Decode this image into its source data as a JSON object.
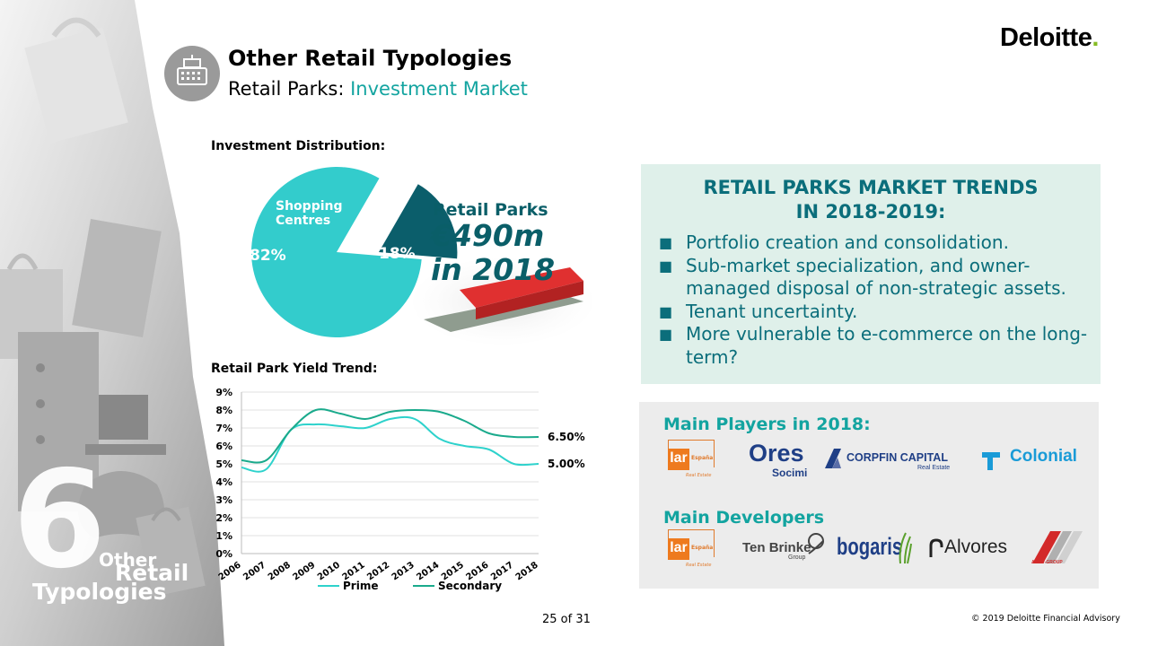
{
  "brand": {
    "logo": "Deloitte",
    "logo_dot": "."
  },
  "sidebar": {
    "number": "6",
    "line1": "Other",
    "line2": "Retail",
    "line3": "Typologies"
  },
  "header": {
    "title": "Other Retail Typologies",
    "subtitle_prefix": "Retail Parks: ",
    "subtitle_accent": "Investment Market"
  },
  "distribution": {
    "label": "Investment Distribution:",
    "slices": [
      {
        "name": "Shopping Centres",
        "percent_label": "82%",
        "value": 82
      },
      {
        "name": "Retail Parks",
        "percent_label": "18%",
        "value": 18
      }
    ],
    "shopping_line1": "Shopping",
    "shopping_line2": "Centres",
    "retail_parks_label": "Retail Parks",
    "amount_line1": "€490m",
    "amount_line2": "in 2018"
  },
  "yield_trend": {
    "label": "Retail Park Yield Trend:"
  },
  "chart_data": {
    "type": "line",
    "title": "Retail Park Yield Trend:",
    "x": [
      "2006",
      "2007",
      "2008",
      "2009",
      "2010",
      "2011",
      "2012",
      "2013",
      "2014",
      "2015",
      "2016",
      "2017",
      "2018"
    ],
    "series": [
      {
        "name": "Prime",
        "color": "#2ed2cc",
        "values": [
          4.8,
          4.7,
          6.9,
          7.2,
          7.1,
          7.0,
          7.5,
          7.5,
          6.4,
          6.0,
          5.8,
          5.0,
          5.0
        ]
      },
      {
        "name": "Secondary",
        "color": "#1aaa8c",
        "values": [
          5.2,
          5.2,
          6.9,
          8.0,
          7.8,
          7.5,
          7.9,
          8.0,
          7.9,
          7.4,
          6.7,
          6.5,
          6.5
        ]
      }
    ],
    "ylim": [
      0,
      9
    ],
    "yticks": [
      "0%",
      "1%",
      "2%",
      "3%",
      "4%",
      "5%",
      "6%",
      "7%",
      "8%",
      "9%"
    ],
    "end_labels": [
      "5.00%",
      "6.50%"
    ],
    "grid": true,
    "legend": "bottom"
  },
  "trends": {
    "title_line1": "RETAIL PARKS MARKET TRENDS",
    "title_line2": "IN 2018-2019:",
    "items": [
      "Portfolio creation and consolidation.",
      "Sub-market specialization, and owner-managed disposal of non-strategic assets.",
      "Tenant uncertainty.",
      "More vulnerable to e-commerce on the long-term?"
    ]
  },
  "players": {
    "title": "Main Players in 2018:",
    "developers_title": "Main Developers",
    "lar": {
      "mark": "lar",
      "sub": "España",
      "tag": "Real Estate"
    },
    "ores": {
      "main": "Ores",
      "sub": "Socimi"
    },
    "corpfin": {
      "main": "CORPFIN CAPITAL",
      "sub": "Real Estate"
    },
    "colonial": "Colonial",
    "tenbrinke": {
      "main": "Ten Brinke",
      "sub": "Group"
    },
    "bogaris": "bogaris",
    "alvores": "Alvores",
    "activ": "ACTIV-GROUP"
  },
  "footer": {
    "page": "25 of 31",
    "copyright": "© 2019 Deloitte Financial Advisory"
  }
}
